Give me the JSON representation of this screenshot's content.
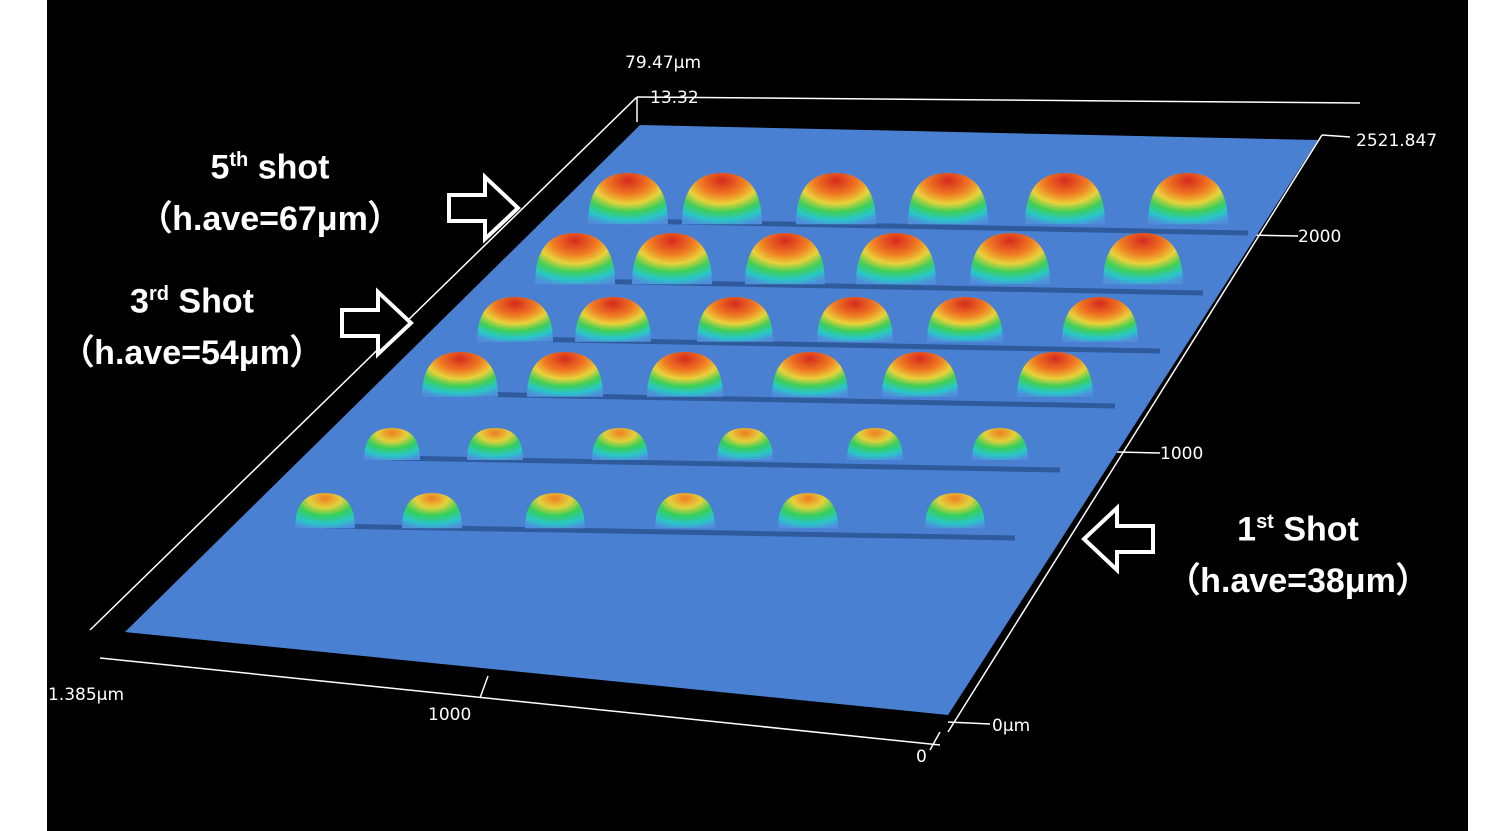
{
  "axis_labels": {
    "z_max": "79.47μm",
    "z_min": "13.32",
    "y_max": "2521.847",
    "y_2000": "2000",
    "y_1000": "1000",
    "y_0": "0μm",
    "x_start": "1.385μm",
    "x_1000": "1000",
    "x_0": "0"
  },
  "annotations": [
    {
      "number": "5",
      "superscript": "th",
      "word": "shot",
      "detail": "（h.ave=67μm）"
    },
    {
      "number": "3",
      "superscript": "rd",
      "word": "Shot",
      "detail": "（h.ave=54μm）"
    },
    {
      "number": "1",
      "superscript": "st",
      "word": "Shot",
      "detail": "（h.ave=38μm）"
    }
  ]
}
